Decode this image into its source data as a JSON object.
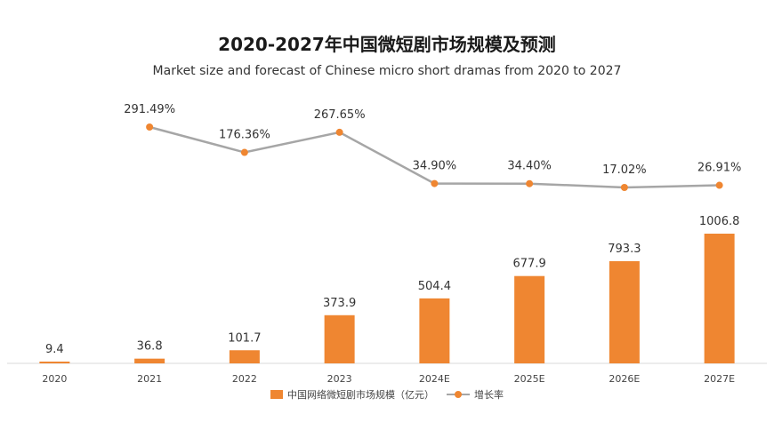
{
  "colors": {
    "bar": "#ef8631",
    "line": "#a6a6a6",
    "dot": "#ef8631",
    "axis": "#d9d9d9"
  },
  "chart_data": {
    "type": "bar",
    "title": "2020-2027年中国微短剧市场规模及预测",
    "subtitle": "Market size and forecast of Chinese micro short dramas from 2020 to 2027",
    "categories": [
      "2020",
      "2021",
      "2022",
      "2023",
      "2024E",
      "2025E",
      "2026E",
      "2027E"
    ],
    "series": [
      {
        "name": "中国网络微短剧市场规模（亿元）",
        "type": "bar",
        "values": [
          9.4,
          36.8,
          101.7,
          373.9,
          504.4,
          677.9,
          793.3,
          1006.8
        ],
        "labels": [
          "9.4",
          "36.8",
          "101.7",
          "373.9",
          "504.4",
          "677.9",
          "793.3",
          "1006.8"
        ]
      },
      {
        "name": "增长率",
        "type": "line",
        "values": [
          null,
          291.49,
          176.36,
          267.65,
          34.9,
          34.4,
          17.02,
          26.91
        ],
        "labels": [
          null,
          "291.49%",
          "176.36%",
          "267.65%",
          "34.90%",
          "34.40%",
          "17.02%",
          "26.91%"
        ]
      }
    ],
    "grid": false,
    "legend": "bottom"
  }
}
